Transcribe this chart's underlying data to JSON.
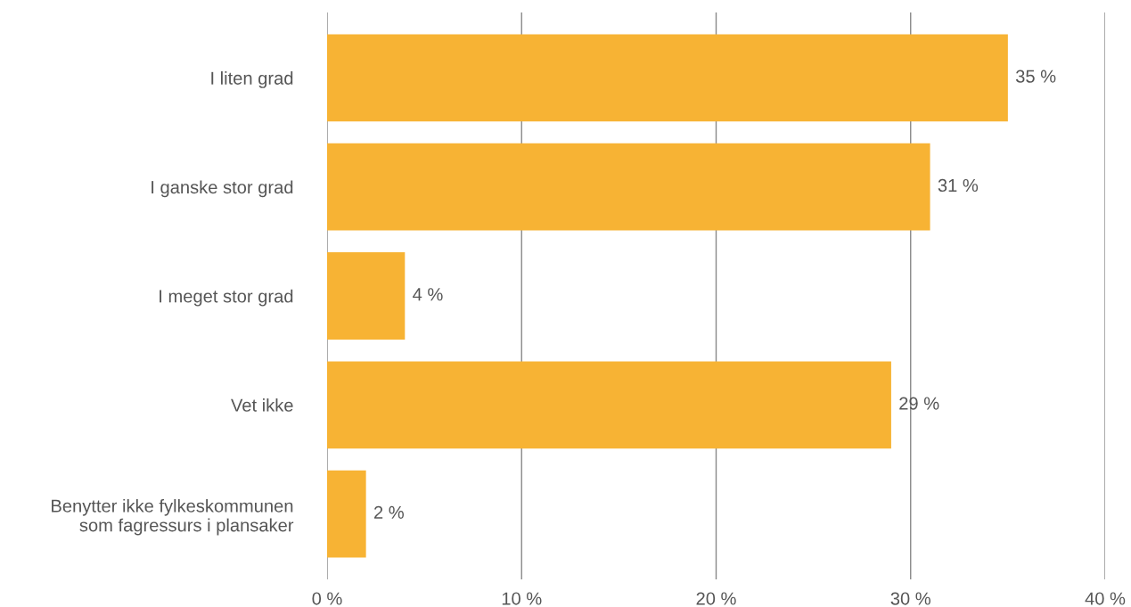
{
  "chart_data": {
    "type": "bar",
    "orientation": "horizontal",
    "categories": [
      "I liten grad",
      "I ganske stor grad",
      "I meget stor grad",
      "Vet ikke",
      "Benytter ikke fylkeskommunen\nsom fagressurs i plansaker"
    ],
    "values": [
      35,
      31,
      4,
      29,
      2
    ],
    "value_labels": [
      "35 %",
      "31 %",
      "4 %",
      "29 %",
      "2 %"
    ],
    "color": "#f7b334",
    "xlim": [
      0,
      40
    ],
    "xticks": [
      {
        "value": 0,
        "label": "0 %"
      },
      {
        "value": 10,
        "label": "10 %"
      },
      {
        "value": 20,
        "label": "20 %"
      },
      {
        "value": 30,
        "label": "30 %"
      },
      {
        "value": 40,
        "label": "40 %"
      }
    ],
    "grid": "x",
    "legend": false
  }
}
